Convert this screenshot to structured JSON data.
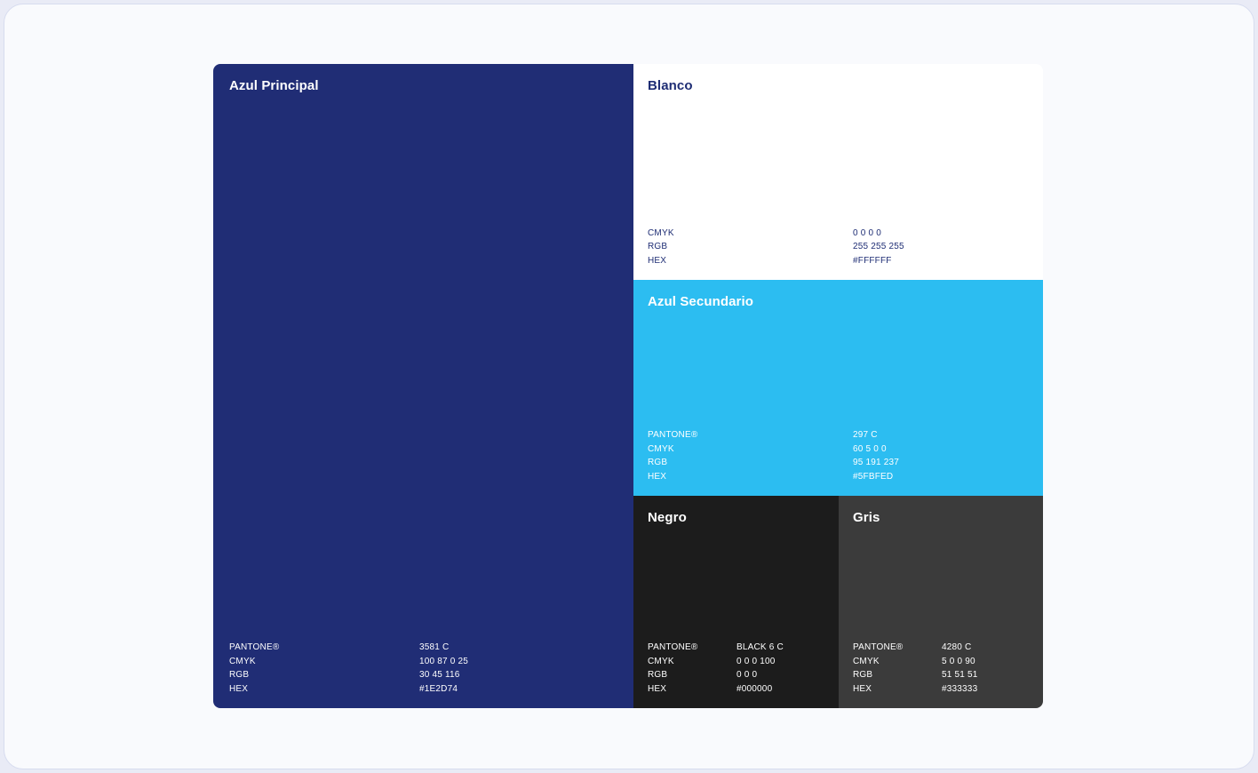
{
  "page": {
    "background": "#E9EBF6",
    "card_background": "#F9FAFD",
    "card_border": "#D7DCEF"
  },
  "palette": {
    "swatches": [
      {
        "id": "azul-principal",
        "name": "Azul Principal",
        "fill": "#202D75",
        "text_color": "#FFFFFF",
        "specs": [
          {
            "label": "PANTONE®",
            "value": "3581 C"
          },
          {
            "label": "CMYK",
            "value": "100 87 0 25"
          },
          {
            "label": "RGB",
            "value": "30 45 116"
          },
          {
            "label": "HEX",
            "value": "#1E2D74"
          }
        ]
      },
      {
        "id": "blanco",
        "name": "Blanco",
        "fill": "#FFFFFF",
        "text_color": "#1E2D74",
        "specs": [
          {
            "label": "CMYK",
            "value": "0 0 0 0"
          },
          {
            "label": "RGB",
            "value": "255 255 255"
          },
          {
            "label": "HEX",
            "value": "#FFFFFF"
          }
        ]
      },
      {
        "id": "azul-secundario",
        "name": "Azul Secundario",
        "fill": "#2CBDF1",
        "text_color": "#FFFFFF",
        "specs": [
          {
            "label": "PANTONE®",
            "value": "297 C"
          },
          {
            "label": "CMYK",
            "value": "60 5 0 0"
          },
          {
            "label": "RGB",
            "value": "95 191 237"
          },
          {
            "label": "HEX",
            "value": "#5FBFED"
          }
        ]
      },
      {
        "id": "negro",
        "name": "Negro",
        "fill": "#1C1C1C",
        "text_color": "#FFFFFF",
        "specs": [
          {
            "label": "PANTONE®",
            "value": "BLACK 6 C"
          },
          {
            "label": "CMYK",
            "value": "0 0 0 100"
          },
          {
            "label": "RGB",
            "value": "0 0 0"
          },
          {
            "label": "HEX",
            "value": "#000000"
          }
        ]
      },
      {
        "id": "gris",
        "name": "Gris",
        "fill": "#3B3B3B",
        "text_color": "#FFFFFF",
        "specs": [
          {
            "label": "PANTONE®",
            "value": "4280 C"
          },
          {
            "label": "CMYK",
            "value": "5 0 0 90"
          },
          {
            "label": "RGB",
            "value": "51 51 51"
          },
          {
            "label": "HEX",
            "value": "#333333"
          }
        ]
      }
    ]
  }
}
